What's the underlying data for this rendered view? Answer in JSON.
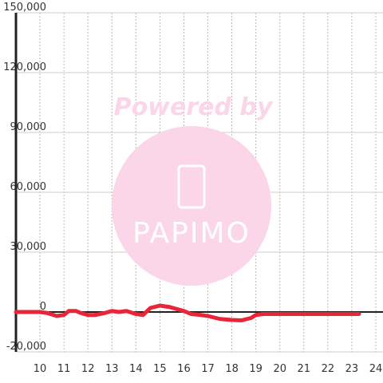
{
  "chart_data": {
    "type": "line",
    "watermark": {
      "text": "Powered by",
      "logo": "PAPIMO"
    },
    "x": [
      9,
      9.5,
      10,
      10.3,
      10.7,
      11,
      11.2,
      11.5,
      11.7,
      12,
      12.3,
      12.7,
      13,
      13.3,
      13.6,
      14,
      14.3,
      14.6,
      15,
      15.4,
      16,
      16.3,
      16.7,
      17,
      17.5,
      18,
      18.4,
      18.8,
      19,
      19.3,
      20,
      21,
      22,
      23.3
    ],
    "series": [
      {
        "color": "#e8263a",
        "values": [
          0,
          0,
          0,
          -500,
          -2000,
          -1500,
          500,
          500,
          -500,
          -1500,
          -1500,
          -500,
          500,
          0,
          500,
          -1000,
          -1500,
          2000,
          3200,
          2500,
          500,
          -1000,
          -1500,
          -2000,
          -3500,
          -4000,
          -4200,
          -3000,
          -1500,
          -1000,
          -1000,
          -1000,
          -1000,
          -1000
        ]
      }
    ],
    "xlim": [
      9,
      24.3
    ],
    "xticks": [
      10,
      11,
      12,
      13,
      14,
      15,
      16,
      17,
      18,
      19,
      20,
      21,
      22,
      23,
      24
    ],
    "ylim": [
      -20000,
      150000
    ],
    "yticks": [
      {
        "value": -20000,
        "label": "-20,000"
      },
      0,
      {
        "value": 30000,
        "label": "30,000"
      },
      {
        "value": 60000,
        "label": "60,000"
      },
      {
        "value": 90000,
        "label": "90,000"
      },
      {
        "value": 120000,
        "label": "120,000"
      },
      {
        "value": 150000,
        "label": "150,000"
      }
    ],
    "grid": true
  }
}
